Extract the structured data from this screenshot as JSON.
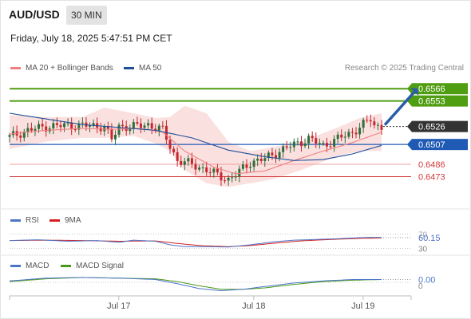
{
  "header": {
    "pair": "AUD/USD",
    "timeframe": "30 MIN",
    "datetime": "Friday, July 18, 2025 5:47:51 PM CET"
  },
  "legend": {
    "ma20": "MA 20 + Bollinger Bands",
    "ma50": "MA 50",
    "credit": "Research © 2025 Trading Central"
  },
  "rsi_legend": {
    "rsi": "RSI",
    "ma": "9MA"
  },
  "macd_legend": {
    "macd": "MACD",
    "signal": "MACD Signal"
  },
  "colors": {
    "green": "#4f9d10",
    "blue": "#1f5bb5",
    "red": "#d23b3b",
    "pink": "#f0a0a0",
    "band": "#fbe0e0",
    "dark": "#333333",
    "navy": "#2a5ca8"
  },
  "chart_data": {
    "type": "candlestick",
    "ylim": [
      0.6443,
      0.6578
    ],
    "price_levels": [
      {
        "value": 0.6566,
        "label": "0.6566",
        "kind": "resistance-target"
      },
      {
        "value": 0.6553,
        "label": "0.6553",
        "kind": "resistance"
      },
      {
        "value": 0.6526,
        "label": "0.6526",
        "kind": "last-price"
      },
      {
        "value": 0.6507,
        "label": "0.6507",
        "kind": "pivot"
      },
      {
        "value": 0.6486,
        "label": "0.6486",
        "kind": "support"
      },
      {
        "value": 0.6473,
        "label": "0.6473",
        "kind": "support"
      }
    ],
    "x_ticks": [
      "Jul 17",
      "Jul 18",
      "Jul 19"
    ],
    "x_tick_index": [
      33,
      70,
      100
    ],
    "n_bars": 103,
    "close_path": [
      [
        0,
        0.6515
      ],
      [
        5,
        0.6522
      ],
      [
        10,
        0.6526
      ],
      [
        15,
        0.6527
      ],
      [
        22,
        0.6527
      ],
      [
        26,
        0.6526
      ],
      [
        28,
        0.6512
      ],
      [
        30,
        0.6526
      ],
      [
        34,
        0.6526
      ],
      [
        38,
        0.6528
      ],
      [
        42,
        0.6522
      ],
      [
        44,
        0.6505
      ],
      [
        46,
        0.649
      ],
      [
        50,
        0.6486
      ],
      [
        54,
        0.648
      ],
      [
        58,
        0.6473
      ],
      [
        60,
        0.647
      ],
      [
        62,
        0.6475
      ],
      [
        66,
        0.6488
      ],
      [
        70,
        0.6492
      ],
      [
        74,
        0.65
      ],
      [
        78,
        0.6507
      ],
      [
        82,
        0.6513
      ],
      [
        86,
        0.6506
      ],
      [
        90,
        0.6513
      ],
      [
        94,
        0.652
      ],
      [
        97,
        0.6528
      ],
      [
        99,
        0.6534
      ],
      [
        100,
        0.6527
      ],
      [
        102,
        0.6526
      ]
    ],
    "ma50_path": [
      [
        0,
        0.654
      ],
      [
        10,
        0.6534
      ],
      [
        20,
        0.6528
      ],
      [
        30,
        0.6525
      ],
      [
        40,
        0.6522
      ],
      [
        50,
        0.6514
      ],
      [
        60,
        0.6501
      ],
      [
        70,
        0.6494
      ],
      [
        78,
        0.649
      ],
      [
        86,
        0.6491
      ],
      [
        94,
        0.6497
      ],
      [
        102,
        0.6506
      ]
    ],
    "ma20_path": [
      [
        0,
        0.6518
      ],
      [
        10,
        0.6522
      ],
      [
        20,
        0.6524
      ],
      [
        28,
        0.6523
      ],
      [
        36,
        0.6524
      ],
      [
        42,
        0.652
      ],
      [
        48,
        0.65
      ],
      [
        56,
        0.6483
      ],
      [
        62,
        0.6476
      ],
      [
        70,
        0.6479
      ],
      [
        78,
        0.649
      ],
      [
        86,
        0.65
      ],
      [
        94,
        0.6509
      ],
      [
        102,
        0.652
      ]
    ],
    "band_upper_path": [
      [
        0,
        0.6538
      ],
      [
        10,
        0.6536
      ],
      [
        20,
        0.6536
      ],
      [
        26,
        0.6546
      ],
      [
        34,
        0.654
      ],
      [
        40,
        0.6535
      ],
      [
        44,
        0.6536
      ],
      [
        48,
        0.6548
      ],
      [
        54,
        0.654
      ],
      [
        60,
        0.651
      ],
      [
        66,
        0.65
      ],
      [
        72,
        0.6504
      ],
      [
        80,
        0.651
      ],
      [
        90,
        0.6525
      ],
      [
        96,
        0.6535
      ],
      [
        102,
        0.654
      ]
    ],
    "band_lower_path": [
      [
        0,
        0.6502
      ],
      [
        10,
        0.651
      ],
      [
        20,
        0.6514
      ],
      [
        26,
        0.6514
      ],
      [
        34,
        0.6516
      ],
      [
        40,
        0.6508
      ],
      [
        44,
        0.65
      ],
      [
        48,
        0.648
      ],
      [
        54,
        0.6466
      ],
      [
        60,
        0.6462
      ],
      [
        66,
        0.6466
      ],
      [
        72,
        0.647
      ],
      [
        80,
        0.648
      ],
      [
        90,
        0.6495
      ],
      [
        96,
        0.65
      ],
      [
        102,
        0.65
      ]
    ],
    "projection": {
      "from": [
        102,
        0.6526
      ],
      "to": [
        111,
        0.6566
      ]
    },
    "rsi": {
      "value_label": "60.15",
      "levels": [
        "70",
        "30"
      ],
      "ylim": [
        20,
        80
      ],
      "rsi_path": [
        [
          0,
          52
        ],
        [
          8,
          54
        ],
        [
          16,
          50
        ],
        [
          24,
          52
        ],
        [
          30,
          47
        ],
        [
          34,
          53
        ],
        [
          40,
          50
        ],
        [
          44,
          40
        ],
        [
          48,
          35
        ],
        [
          54,
          35
        ],
        [
          60,
          34
        ],
        [
          66,
          40
        ],
        [
          72,
          48
        ],
        [
          78,
          53
        ],
        [
          84,
          55
        ],
        [
          90,
          57
        ],
        [
          96,
          60
        ],
        [
          99,
          61
        ],
        [
          102,
          60.15
        ]
      ],
      "ma_path": [
        [
          0,
          52
        ],
        [
          10,
          53
        ],
        [
          20,
          52
        ],
        [
          30,
          50
        ],
        [
          40,
          51
        ],
        [
          46,
          44
        ],
        [
          52,
          38
        ],
        [
          60,
          35
        ],
        [
          66,
          38
        ],
        [
          72,
          44
        ],
        [
          80,
          51
        ],
        [
          88,
          55
        ],
        [
          96,
          58
        ],
        [
          102,
          59
        ]
      ]
    },
    "macd": {
      "value_label": "0.00",
      "zero_label": "0",
      "ylim": [
        -0.0016,
        0.0016
      ],
      "macd_path": [
        [
          0,
          0.0002
        ],
        [
          10,
          0.0006
        ],
        [
          20,
          0.0007
        ],
        [
          30,
          0.0006
        ],
        [
          40,
          0.0004
        ],
        [
          46,
          -0.0002
        ],
        [
          52,
          -0.0009
        ],
        [
          58,
          -0.0012
        ],
        [
          64,
          -0.001
        ],
        [
          70,
          -0.0006
        ],
        [
          78,
          -0.0001
        ],
        [
          86,
          0.0002
        ],
        [
          94,
          0.0004
        ],
        [
          102,
          0.0004
        ]
      ],
      "signal_path": [
        [
          0,
          0.0001
        ],
        [
          10,
          0.0005
        ],
        [
          20,
          0.0007
        ],
        [
          30,
          0.0006
        ],
        [
          40,
          0.0005
        ],
        [
          46,
          0.0001
        ],
        [
          52,
          -0.0005
        ],
        [
          58,
          -0.001
        ],
        [
          64,
          -0.001
        ],
        [
          70,
          -0.0008
        ],
        [
          78,
          -0.0003
        ],
        [
          86,
          0.0001
        ],
        [
          94,
          0.0003
        ],
        [
          102,
          0.0004
        ]
      ]
    }
  }
}
